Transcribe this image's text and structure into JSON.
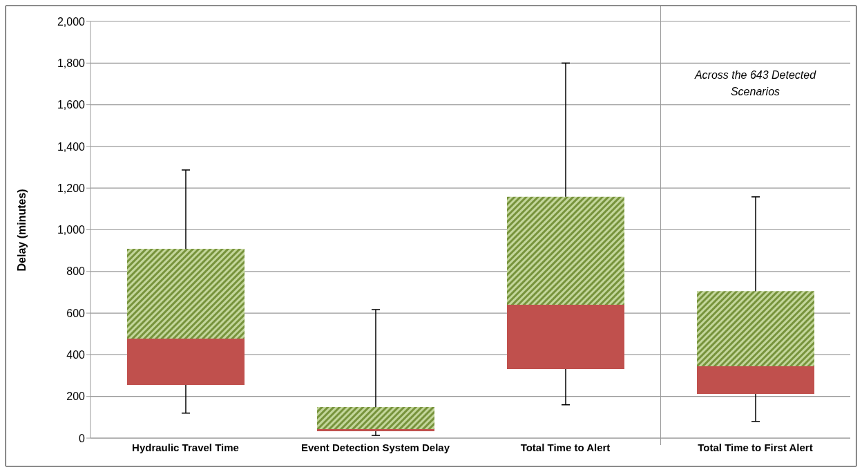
{
  "chart_data": {
    "type": "box",
    "ylabel": "Delay (minutes)",
    "categories": [
      "Hydraulic Travel Time",
      "Event Detection System Delay",
      "Total Time to Alert",
      "Total Time to First Alert"
    ],
    "boxes": [
      {
        "low": 120,
        "q1": 255,
        "median": 478,
        "q3": 909,
        "high": 1287
      },
      {
        "low": 13,
        "q1": 33,
        "median": 43,
        "q3": 149,
        "high": 617
      },
      {
        "low": 160,
        "q1": 332,
        "median": 640,
        "q3": 1158,
        "high": 1800
      },
      {
        "low": 80,
        "q1": 212,
        "median": 345,
        "q3": 706,
        "high": 1158
      }
    ],
    "color": "#c0504d",
    "ylim": [
      0,
      2000
    ],
    "yticks": [
      {
        "value": 0,
        "label": "0"
      },
      {
        "value": 200,
        "label": "200"
      },
      {
        "value": 400,
        "label": "400"
      },
      {
        "value": 600,
        "label": "600"
      },
      {
        "value": 800,
        "label": "800"
      },
      {
        "value": 1000,
        "label": "1,000"
      },
      {
        "value": 1200,
        "label": "1,200"
      },
      {
        "value": 1400,
        "label": "1,400"
      },
      {
        "value": 1600,
        "label": "1,600"
      },
      {
        "value": 1800,
        "label": "1,800"
      },
      {
        "value": 2000,
        "label": "2,000"
      }
    ],
    "grid": "y",
    "annotations": [
      "Across the 643 Detected Scenarios"
    ]
  }
}
